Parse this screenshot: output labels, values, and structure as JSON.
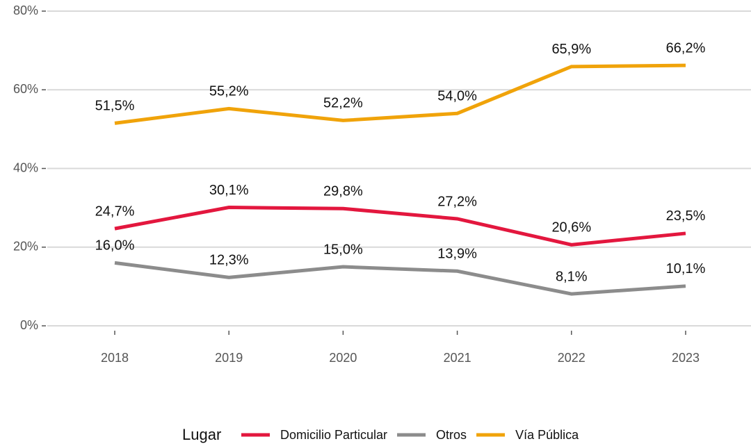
{
  "chart_data": {
    "type": "line",
    "categories": [
      "2018",
      "2019",
      "2020",
      "2021",
      "2022",
      "2023"
    ],
    "series": [
      {
        "name": "Domicilio Particular",
        "color": "#e3173e",
        "values": [
          24.7,
          30.1,
          29.8,
          27.2,
          20.6,
          23.5
        ],
        "value_labels": [
          "24,7%",
          "30,1%",
          "29,8%",
          "27,2%",
          "20,6%",
          "23,5%"
        ]
      },
      {
        "name": "Otros",
        "color": "#8c8c8c",
        "values": [
          16.0,
          12.3,
          15.0,
          13.9,
          8.1,
          10.1
        ],
        "value_labels": [
          "16,0%",
          "12,3%",
          "15,0%",
          "13,9%",
          "8,1%",
          "10,1%"
        ]
      },
      {
        "name": "Vía Pública",
        "color": "#f0a30a",
        "values": [
          51.5,
          55.2,
          52.2,
          54.0,
          65.9,
          66.2
        ],
        "value_labels": [
          "51,5%",
          "55,2%",
          "52,2%",
          "54,0%",
          "65,9%",
          "66,2%"
        ]
      }
    ],
    "ylim": [
      0,
      80
    ],
    "yticks": [
      {
        "value": 0,
        "label": "0%"
      },
      {
        "value": 20,
        "label": "20%"
      },
      {
        "value": 40,
        "label": "40%"
      },
      {
        "value": 60,
        "label": "60%"
      },
      {
        "value": 80,
        "label": "80%"
      }
    ],
    "grid": true,
    "legend_title": "Lugar",
    "legend": "bottom"
  }
}
